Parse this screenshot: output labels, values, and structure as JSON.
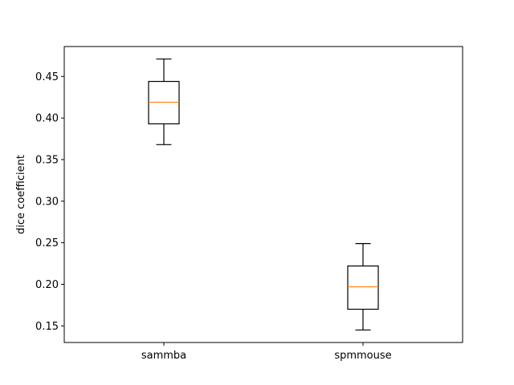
{
  "chart_data": {
    "type": "box",
    "title": "",
    "xlabel": "",
    "ylabel": "dice coefficient",
    "categories": [
      "sammba",
      "spmmouse"
    ],
    "boxes": [
      {
        "name": "sammba",
        "whisker_low": 0.368,
        "q1": 0.393,
        "median": 0.419,
        "q3": 0.444,
        "whisker_high": 0.471
      },
      {
        "name": "spmmouse",
        "whisker_low": 0.145,
        "q1": 0.17,
        "median": 0.197,
        "q3": 0.222,
        "whisker_high": 0.249
      }
    ],
    "ylim": [
      0.13,
      0.486
    ],
    "yticks": [
      0.15,
      0.2,
      0.25,
      0.3,
      0.35,
      0.4,
      0.45
    ],
    "ytick_labels": [
      "0.15",
      "0.20",
      "0.25",
      "0.30",
      "0.35",
      "0.40",
      "0.45"
    ],
    "grid": false,
    "colors": {
      "box": "#000000",
      "median": "#ff7f0e",
      "background": "#ffffff"
    }
  }
}
